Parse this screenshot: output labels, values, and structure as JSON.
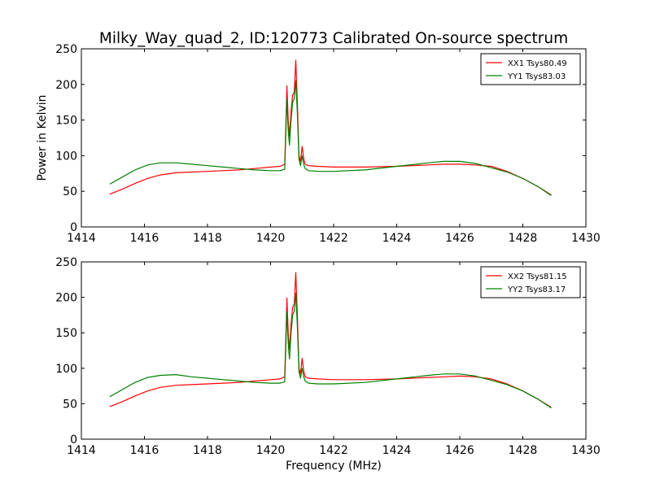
{
  "title": "Milky_Way_quad_2, ID:120773 Calibrated On-source spectrum",
  "chart_data": [
    {
      "type": "line",
      "title": "Milky_Way_quad_2, ID:120773 Calibrated On-source spectrum",
      "xlabel": "",
      "ylabel": "Power in Kelvin",
      "xlim": [
        1414,
        1430
      ],
      "ylim": [
        0,
        250
      ],
      "xticks": [
        1414,
        1416,
        1418,
        1420,
        1422,
        1424,
        1426,
        1428,
        1430
      ],
      "yticks": [
        0,
        50,
        100,
        150,
        200,
        250
      ],
      "grid": false,
      "legend": "top-right",
      "series": [
        {
          "name": "XX1 Tsys80.49",
          "color": "#ff0000",
          "x": [
            1414.9,
            1415.3,
            1415.7,
            1416.1,
            1416.5,
            1417.0,
            1417.5,
            1418.0,
            1418.5,
            1419.0,
            1419.5,
            1420.0,
            1420.3,
            1420.45,
            1420.52,
            1420.56,
            1420.6,
            1420.65,
            1420.7,
            1420.75,
            1420.8,
            1420.85,
            1420.9,
            1420.95,
            1421.0,
            1421.05,
            1421.1,
            1421.2,
            1421.5,
            1422.0,
            1423.0,
            1424.0,
            1425.0,
            1425.5,
            1426.0,
            1426.5,
            1427.0,
            1427.5,
            1428.0,
            1428.5,
            1428.9
          ],
          "y": [
            46,
            53,
            61,
            68,
            73,
            76,
            77,
            78,
            79,
            80,
            82,
            84,
            85,
            88,
            198,
            150,
            127,
            162,
            185,
            189,
            234,
            175,
            100,
            92,
            113,
            96,
            88,
            86,
            85,
            84,
            84,
            85,
            87,
            88,
            88,
            87,
            85,
            78,
            68,
            56,
            45
          ]
        },
        {
          "name": "YY1 Tsys83.03",
          "color": "#008000",
          "x": [
            1414.9,
            1415.3,
            1415.7,
            1416.1,
            1416.5,
            1417.0,
            1417.5,
            1418.0,
            1418.5,
            1419.0,
            1419.5,
            1420.0,
            1420.3,
            1420.45,
            1420.52,
            1420.56,
            1420.6,
            1420.65,
            1420.7,
            1420.75,
            1420.8,
            1420.85,
            1420.9,
            1420.95,
            1421.0,
            1421.05,
            1421.1,
            1421.2,
            1421.5,
            1422.0,
            1423.0,
            1424.0,
            1425.0,
            1425.5,
            1426.0,
            1426.5,
            1427.0,
            1427.5,
            1428.0,
            1428.5,
            1428.9
          ],
          "y": [
            60,
            70,
            80,
            87,
            90,
            90,
            88,
            86,
            84,
            82,
            80,
            79,
            79,
            81,
            180,
            135,
            115,
            150,
            175,
            180,
            205,
            160,
            95,
            86,
            100,
            88,
            82,
            79,
            78,
            78,
            80,
            85,
            90,
            92,
            92,
            89,
            83,
            77,
            68,
            56,
            44
          ]
        }
      ]
    },
    {
      "type": "line",
      "title": "",
      "xlabel": "Frequency (MHz)",
      "ylabel": "",
      "xlim": [
        1414,
        1430
      ],
      "ylim": [
        0,
        250
      ],
      "xticks": [
        1414,
        1416,
        1418,
        1420,
        1422,
        1424,
        1426,
        1428,
        1430
      ],
      "yticks": [
        0,
        50,
        100,
        150,
        200,
        250
      ],
      "grid": false,
      "legend": "top-right",
      "series": [
        {
          "name": "XX2 Tsys81.15",
          "color": "#ff0000",
          "x": [
            1414.9,
            1415.3,
            1415.7,
            1416.1,
            1416.5,
            1417.0,
            1417.5,
            1418.0,
            1418.5,
            1419.0,
            1419.5,
            1420.0,
            1420.3,
            1420.45,
            1420.52,
            1420.56,
            1420.6,
            1420.65,
            1420.7,
            1420.75,
            1420.8,
            1420.85,
            1420.9,
            1420.95,
            1421.0,
            1421.05,
            1421.1,
            1421.2,
            1421.5,
            1422.0,
            1423.0,
            1424.0,
            1425.0,
            1425.5,
            1426.0,
            1426.5,
            1427.0,
            1427.5,
            1428.0,
            1428.5,
            1428.9
          ],
          "y": [
            46,
            53,
            61,
            68,
            73,
            76,
            77,
            78,
            79,
            80,
            82,
            84,
            85,
            88,
            199,
            150,
            127,
            162,
            186,
            190,
            235,
            176,
            100,
            92,
            114,
            96,
            88,
            86,
            85,
            84,
            84,
            85,
            87,
            88,
            89,
            88,
            85,
            78,
            68,
            56,
            45
          ]
        },
        {
          "name": "YY2 Tsys83.17",
          "color": "#008000",
          "x": [
            1414.9,
            1415.3,
            1415.7,
            1416.1,
            1416.5,
            1417.0,
            1417.5,
            1418.0,
            1418.5,
            1419.0,
            1419.5,
            1420.0,
            1420.3,
            1420.45,
            1420.52,
            1420.56,
            1420.6,
            1420.65,
            1420.7,
            1420.75,
            1420.8,
            1420.85,
            1420.9,
            1420.95,
            1421.0,
            1421.05,
            1421.1,
            1421.2,
            1421.5,
            1422.0,
            1423.0,
            1424.0,
            1425.0,
            1425.5,
            1426.0,
            1426.5,
            1427.0,
            1427.5,
            1428.0,
            1428.5,
            1428.9
          ],
          "y": [
            60,
            70,
            80,
            87,
            90,
            91,
            88,
            86,
            84,
            82,
            80,
            79,
            79,
            81,
            180,
            135,
            113,
            150,
            175,
            180,
            206,
            160,
            95,
            86,
            100,
            88,
            82,
            79,
            78,
            78,
            80,
            85,
            90,
            92,
            92,
            89,
            83,
            77,
            68,
            56,
            44
          ]
        }
      ]
    }
  ]
}
